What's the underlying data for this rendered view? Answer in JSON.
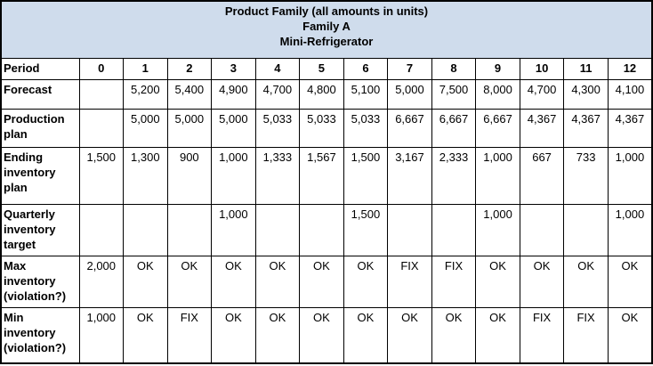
{
  "table": {
    "header_lines": [
      "Product Family (all amounts in units)",
      "Family A",
      "Mini-Refrigerator"
    ],
    "header_bg": "#cfdcec",
    "rows": [
      {
        "label": "Period",
        "values": [
          "0",
          "1",
          "2",
          "3",
          "4",
          "5",
          "6",
          "7",
          "8",
          "9",
          "10",
          "11",
          "12"
        ]
      },
      {
        "label": "Forecast",
        "values": [
          "",
          "5,200",
          "5,400",
          "4,900",
          "4,700",
          "4,800",
          "5,100",
          "5,000",
          "7,500",
          "8,000",
          "4,700",
          "4,300",
          "4,100"
        ]
      },
      {
        "label": "Production plan",
        "values": [
          "",
          "5,000",
          "5,000",
          "5,000",
          "5,033",
          "5,033",
          "5,033",
          "6,667",
          "6,667",
          "6,667",
          "4,367",
          "4,367",
          "4,367"
        ]
      },
      {
        "label": "Ending inventory plan",
        "values": [
          "1,500",
          "1,300",
          "900",
          "1,000",
          "1,333",
          "1,567",
          "1,500",
          "3,167",
          "2,333",
          "1,000",
          "667",
          "733",
          "1,000"
        ]
      },
      {
        "label": "Quarterly inventory target",
        "values": [
          "",
          "",
          "",
          "1,000",
          "",
          "",
          "1,500",
          "",
          "",
          "1,000",
          "",
          "",
          "1,000"
        ]
      },
      {
        "label": "Max inventory (violation?)",
        "values": [
          "2,000",
          "OK",
          "OK",
          "OK",
          "OK",
          "OK",
          "OK",
          "FIX",
          "FIX",
          "OK",
          "OK",
          "OK",
          "OK"
        ]
      },
      {
        "label": "Min inventory (violation?)",
        "values": [
          "1,000",
          "OK",
          "FIX",
          "OK",
          "OK",
          "OK",
          "OK",
          "OK",
          "OK",
          "OK",
          "FIX",
          "FIX",
          "OK"
        ]
      }
    ]
  }
}
